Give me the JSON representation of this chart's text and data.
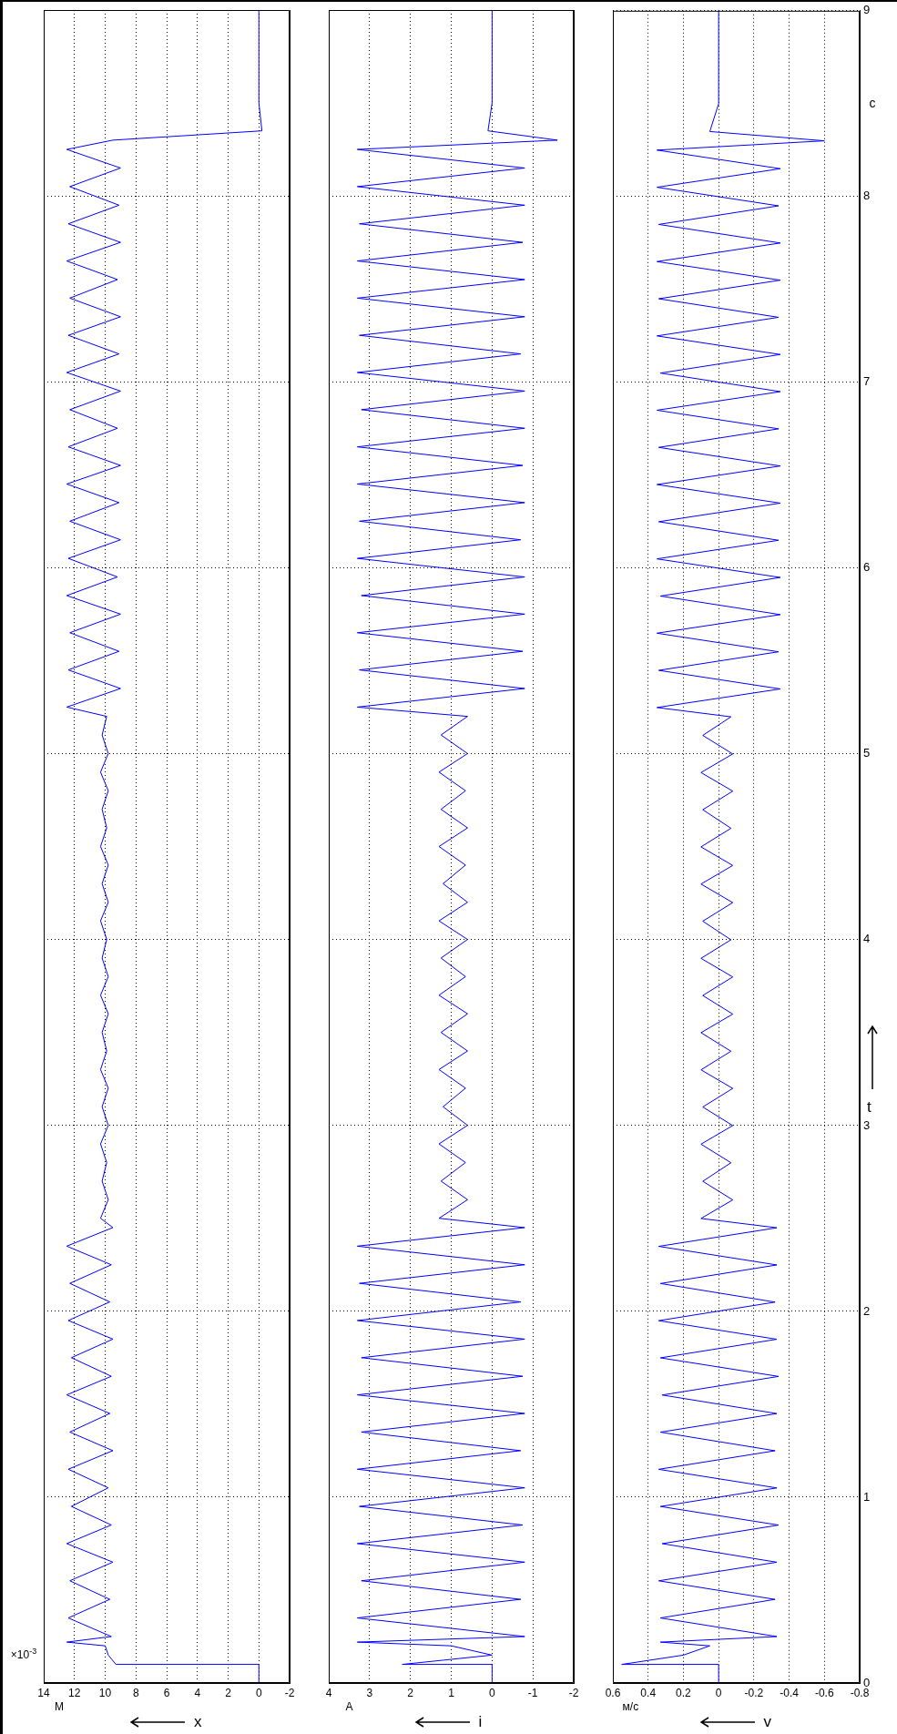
{
  "chart_data": [
    {
      "type": "line",
      "orientation": "horizontal",
      "xlabel": "x",
      "annotations": [
        "M",
        "×10$^{-3}$"
      ],
      "ylim": [
        0,
        9
      ],
      "yticks": [
        0,
        1,
        2,
        3,
        4,
        5,
        6,
        7,
        8,
        9
      ],
      "xlim": [
        14,
        -2
      ],
      "xticks": [
        14,
        12,
        10,
        8,
        6,
        4,
        2,
        0,
        -2
      ],
      "grid": true,
      "tick_labels": "x",
      "x": [
        0,
        0.1,
        0.1,
        0.15,
        0.2,
        0.22,
        0.25,
        0.35,
        0.45,
        0.55,
        0.65,
        0.75,
        0.85,
        0.95,
        1.05,
        1.15,
        1.25,
        1.35,
        1.45,
        1.55,
        1.65,
        1.75,
        1.85,
        1.95,
        2.05,
        2.15,
        2.25,
        2.35,
        2.45,
        2.5,
        2.6,
        2.7,
        2.8,
        2.9,
        3,
        3.1,
        3.2,
        3.3,
        3.4,
        3.5,
        3.6,
        3.7,
        3.8,
        3.9,
        4,
        4.1,
        4.2,
        4.3,
        4.4,
        4.5,
        4.6,
        4.7,
        4.8,
        4.9,
        5,
        5.1,
        5.2,
        5.25,
        5.35,
        5.45,
        5.55,
        5.65,
        5.75,
        5.85,
        5.95,
        6.05,
        6.15,
        6.25,
        6.35,
        6.45,
        6.55,
        6.65,
        6.75,
        6.85,
        6.95,
        7.05,
        7.15,
        7.25,
        7.35,
        7.45,
        7.55,
        7.65,
        7.75,
        7.85,
        7.95,
        8.05,
        8.15,
        8.25,
        8.3,
        8.35,
        8.5,
        9
      ],
      "series": [
        {
          "color": "#0000ff",
          "values": [
            0,
            0,
            9.3,
            9.8,
            10,
            12.5,
            9.6,
            12.4,
            9.7,
            12.3,
            9.5,
            12.5,
            9.6,
            12.2,
            9.8,
            12.4,
            9.5,
            12.3,
            9.7,
            12.5,
            9.6,
            12.2,
            9.5,
            12.4,
            9.7,
            12.3,
            9.6,
            12.5,
            9.5,
            10.3,
            9.8,
            10.2,
            9.9,
            10.3,
            9.8,
            10.2,
            9.8,
            10.3,
            9.9,
            10.2,
            9.8,
            10.3,
            9.8,
            10.2,
            9.9,
            10.3,
            9.8,
            10.2,
            9.8,
            10.3,
            9.9,
            10.2,
            9.8,
            10.3,
            9.8,
            10.2,
            9.9,
            12.5,
            9.0,
            12.4,
            9.1,
            12.3,
            9.0,
            12.5,
            9.2,
            12.4,
            9.0,
            12.3,
            9.1,
            12.5,
            9.0,
            12.4,
            9.2,
            12.3,
            9.0,
            12.5,
            9.1,
            12.4,
            9.0,
            12.3,
            9.2,
            12.5,
            9.0,
            12.4,
            9.1,
            12.3,
            9.0,
            12.5,
            9.5,
            -0.2,
            0,
            0
          ]
        }
      ]
    },
    {
      "type": "line",
      "orientation": "horizontal",
      "xlabel": "i",
      "annotations": [
        "A"
      ],
      "ylim": [
        0,
        9
      ],
      "yticks": [
        0,
        1,
        2,
        3,
        4,
        5,
        6,
        7,
        8,
        9
      ],
      "xlim": [
        4,
        -2
      ],
      "xticks": [
        4,
        3,
        2,
        1,
        0,
        -1,
        -2
      ],
      "grid": true,
      "tick_labels": "x",
      "x": [
        0,
        0.1,
        0.1,
        0.15,
        0.2,
        0.22,
        0.25,
        0.35,
        0.45,
        0.55,
        0.65,
        0.75,
        0.85,
        0.95,
        1.05,
        1.15,
        1.25,
        1.35,
        1.45,
        1.55,
        1.65,
        1.75,
        1.85,
        1.95,
        2.05,
        2.15,
        2.25,
        2.35,
        2.45,
        2.5,
        2.6,
        2.7,
        2.8,
        2.9,
        3,
        3.1,
        3.2,
        3.3,
        3.4,
        3.5,
        3.6,
        3.7,
        3.8,
        3.9,
        4,
        4.1,
        4.2,
        4.3,
        4.4,
        4.5,
        4.6,
        4.7,
        4.8,
        4.9,
        5,
        5.1,
        5.2,
        5.25,
        5.35,
        5.45,
        5.55,
        5.65,
        5.75,
        5.85,
        5.95,
        6.05,
        6.15,
        6.25,
        6.35,
        6.45,
        6.55,
        6.65,
        6.75,
        6.85,
        6.95,
        7.05,
        7.15,
        7.25,
        7.35,
        7.45,
        7.55,
        7.65,
        7.75,
        7.85,
        7.95,
        8.05,
        8.15,
        8.25,
        8.3,
        8.35,
        8.5,
        9
      ],
      "series": [
        {
          "color": "#0000ff",
          "values": [
            0,
            0,
            2.2,
            0,
            1.0,
            3.3,
            -0.8,
            3.3,
            -0.7,
            3.2,
            -0.8,
            3.3,
            -0.75,
            3.25,
            -0.8,
            3.3,
            -0.7,
            3.2,
            -0.8,
            3.3,
            -0.75,
            3.2,
            -0.8,
            3.3,
            -0.7,
            3.25,
            -0.8,
            3.3,
            -0.8,
            1.3,
            0.6,
            1.25,
            0.65,
            1.3,
            0.6,
            1.2,
            0.65,
            1.3,
            0.6,
            1.25,
            0.6,
            1.3,
            0.65,
            1.25,
            0.6,
            1.3,
            0.6,
            1.2,
            0.65,
            1.3,
            0.6,
            1.25,
            0.65,
            1.3,
            0.6,
            1.25,
            0.6,
            3.3,
            -0.8,
            3.25,
            -0.75,
            3.3,
            -0.8,
            3.2,
            -0.8,
            3.3,
            -0.7,
            3.25,
            -0.8,
            3.3,
            -0.75,
            3.3,
            -0.8,
            3.2,
            -0.8,
            3.3,
            -0.7,
            3.25,
            -0.8,
            3.3,
            -0.8,
            3.3,
            -0.75,
            3.25,
            -0.8,
            3.3,
            -0.8,
            3.3,
            -1.6,
            0.1,
            0,
            0
          ]
        }
      ]
    },
    {
      "type": "line",
      "orientation": "horizontal",
      "xlabel": "v",
      "ylabel": "t",
      "annotations": [
        "м/с",
        "c"
      ],
      "ylim": [
        0,
        9
      ],
      "yticks": [
        0,
        1,
        2,
        3,
        4,
        5,
        6,
        7,
        8,
        9
      ],
      "xlim": [
        0.6,
        -0.8
      ],
      "xticks": [
        0.6,
        0.4,
        0.2,
        0,
        -0.2,
        -0.4,
        -0.6,
        -0.8
      ],
      "grid": true,
      "x": [
        0,
        0.1,
        0.1,
        0.15,
        0.2,
        0.22,
        0.25,
        0.35,
        0.45,
        0.55,
        0.65,
        0.75,
        0.85,
        0.95,
        1.05,
        1.15,
        1.25,
        1.35,
        1.45,
        1.55,
        1.65,
        1.75,
        1.85,
        1.95,
        2.05,
        2.15,
        2.25,
        2.35,
        2.45,
        2.5,
        2.6,
        2.7,
        2.8,
        2.9,
        3,
        3.1,
        3.2,
        3.3,
        3.4,
        3.5,
        3.6,
        3.7,
        3.8,
        3.9,
        4,
        4.1,
        4.2,
        4.3,
        4.4,
        4.5,
        4.6,
        4.7,
        4.8,
        4.9,
        5,
        5.1,
        5.2,
        5.25,
        5.35,
        5.45,
        5.55,
        5.65,
        5.75,
        5.85,
        5.95,
        6.05,
        6.15,
        6.25,
        6.35,
        6.45,
        6.55,
        6.65,
        6.75,
        6.85,
        6.95,
        7.05,
        7.15,
        7.25,
        7.35,
        7.45,
        7.55,
        7.65,
        7.75,
        7.85,
        7.95,
        8.05,
        8.15,
        8.25,
        8.3,
        8.35,
        8.5,
        9
      ],
      "series": [
        {
          "color": "#0000ff",
          "values": [
            0,
            0,
            0.55,
            0.2,
            0.05,
            0.33,
            -0.33,
            0.33,
            -0.32,
            0.34,
            -0.33,
            0.32,
            -0.34,
            0.33,
            -0.33,
            0.34,
            -0.32,
            0.33,
            -0.33,
            0.32,
            -0.34,
            0.33,
            -0.33,
            0.34,
            -0.32,
            0.33,
            -0.33,
            0.34,
            -0.33,
            0.1,
            -0.08,
            0.09,
            -0.07,
            0.1,
            -0.08,
            0.09,
            -0.08,
            0.1,
            -0.07,
            0.1,
            -0.08,
            0.09,
            -0.08,
            0.1,
            -0.07,
            0.09,
            -0.08,
            0.1,
            -0.08,
            0.1,
            -0.07,
            0.09,
            -0.08,
            0.1,
            -0.08,
            0.09,
            -0.07,
            0.35,
            -0.35,
            0.34,
            -0.34,
            0.35,
            -0.35,
            0.33,
            -0.35,
            0.35,
            -0.34,
            0.34,
            -0.35,
            0.35,
            -0.35,
            0.34,
            -0.34,
            0.35,
            -0.35,
            0.33,
            -0.35,
            0.35,
            -0.34,
            0.34,
            -0.35,
            0.35,
            -0.35,
            0.34,
            -0.34,
            0.35,
            -0.35,
            0.35,
            -0.6,
            0.05,
            0,
            0
          ]
        }
      ]
    }
  ]
}
